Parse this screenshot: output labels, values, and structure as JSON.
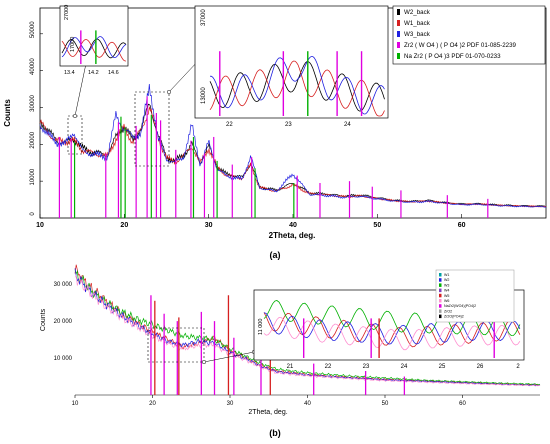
{
  "colors": {
    "black": "#000000",
    "red": "#d62020",
    "blue": "#2020e0",
    "magenta": "#e000e0",
    "green": "#00b000",
    "pink": "#ff8fd0",
    "grey": "#a0a0a0",
    "teal": "#00a0a0",
    "purple": "#8040c0"
  },
  "panel_labels": {
    "a": "(a)",
    "b": "(b)"
  },
  "chart_data": [
    {
      "type": "line",
      "panel": "(a)",
      "xlabel": "2Theta, deg.",
      "ylabel": "Counts",
      "xlim": [
        10,
        70
      ],
      "ylim": [
        0,
        57000
      ],
      "xticks": [
        "10",
        "20",
        "30",
        "40",
        "50",
        "60"
      ],
      "yticks": [
        "0",
        "10000",
        "20000",
        "30000",
        "40000",
        "50000"
      ],
      "legend_position": "top-right",
      "series": [
        {
          "name": "W2_back",
          "color": "#000000",
          "kind": "line",
          "x": [
            10,
            11,
            12,
            13,
            14,
            15,
            16,
            17,
            18,
            19,
            20,
            21,
            22,
            23,
            24,
            25,
            26,
            27,
            28,
            29,
            30,
            31,
            32,
            33,
            34,
            35,
            36,
            38,
            40,
            42,
            44,
            46,
            48,
            50,
            52,
            54,
            56,
            58,
            60,
            62,
            64,
            66,
            68,
            70
          ],
          "y": [
            26500,
            23500,
            21000,
            20500,
            21500,
            19000,
            18000,
            17500,
            17000,
            22000,
            25000,
            21000,
            24500,
            31000,
            22500,
            16500,
            15500,
            17000,
            20000,
            15000,
            19500,
            14000,
            12000,
            11500,
            11000,
            15000,
            8500,
            7500,
            9500,
            6800,
            6500,
            6000,
            6200,
            5500,
            4800,
            4500,
            4800,
            4200,
            3800,
            3900,
            3600,
            3400,
            3300,
            3200
          ]
        },
        {
          "name": "W1_back",
          "color": "#d62020",
          "kind": "line",
          "x": [
            10,
            11,
            12,
            13,
            14,
            15,
            16,
            17,
            18,
            19,
            20,
            21,
            22,
            23,
            24,
            25,
            26,
            27,
            28,
            29,
            30,
            31,
            32,
            33,
            34,
            35,
            36,
            38,
            40,
            42,
            44,
            46,
            48,
            50,
            52,
            54,
            56,
            58,
            60,
            62,
            64,
            66,
            68,
            70
          ],
          "y": [
            26000,
            23000,
            20800,
            20800,
            21000,
            18500,
            17800,
            17200,
            16800,
            21500,
            24500,
            20500,
            24000,
            30000,
            22000,
            16200,
            15200,
            16800,
            19500,
            14800,
            19000,
            13800,
            11800,
            11200,
            10800,
            14500,
            8300,
            7300,
            9000,
            6600,
            6300,
            5800,
            6000,
            5300,
            4700,
            4400,
            4600,
            4100,
            3700,
            3800,
            3500,
            3300,
            3200,
            3100
          ]
        },
        {
          "name": "W3_back",
          "color": "#2020e0",
          "kind": "line",
          "x": [
            10,
            11,
            12,
            13,
            14,
            15,
            16,
            17,
            18,
            19,
            20,
            21,
            22,
            23,
            24,
            25,
            26,
            27,
            28,
            29,
            30,
            31,
            32,
            33,
            34,
            35,
            36,
            38,
            40,
            42,
            44,
            46,
            48,
            50,
            52,
            54,
            56,
            58,
            60,
            62,
            64,
            66,
            68,
            70
          ],
          "y": [
            25500,
            22500,
            20500,
            20000,
            23500,
            18200,
            17500,
            17000,
            16500,
            28000,
            24000,
            22000,
            23000,
            36000,
            21500,
            16000,
            15000,
            16500,
            25000,
            14500,
            20500,
            13500,
            11500,
            11000,
            10500,
            17000,
            8200,
            7200,
            12000,
            6400,
            6100,
            5600,
            5900,
            5200,
            4600,
            4300,
            4500,
            4000,
            3600,
            3700,
            3400,
            3200,
            3100,
            3000
          ]
        },
        {
          "name": "Zr2 ( W O4 ) ( P O4 )2 PDF 01-085-2239",
          "color": "#e000e0",
          "kind": "sticks",
          "x": [
            12.3,
            13.7,
            17.8,
            19.3,
            21.4,
            22.7,
            23.8,
            24.3,
            26.1,
            27.9,
            29.5,
            30.6,
            32.8,
            35.1,
            40.5,
            43.2,
            46.7,
            49.4,
            52.8,
            58.3,
            63.1
          ],
          "y": [
            22000,
            21500,
            17500,
            26000,
            25000,
            33000,
            28500,
            26500,
            18500,
            21000,
            17500,
            22000,
            14500,
            16500,
            11500,
            9500,
            10000,
            8500,
            7500,
            6200,
            5200
          ]
        },
        {
          "name": "Na Zr2 ( P O4 )3 PDF 01-070-0233",
          "color": "#00b000",
          "kind": "sticks",
          "x": [
            14.1,
            19.6,
            20.1,
            23.2,
            28.2,
            31.0,
            35.5,
            40.1
          ],
          "y": [
            20500,
            27500,
            24500,
            28000,
            22000,
            15500,
            13500,
            9500
          ]
        }
      ],
      "insets": [
        {
          "xlim": [
            13.2,
            14.9
          ],
          "ylim": [
            15000,
            28000
          ],
          "xticks": [
            "13.4",
            "14.2",
            "14.6"
          ],
          "yticks": [
            "17000",
            "27000"
          ]
        },
        {
          "xlim": [
            21.2,
            24.8
          ],
          "ylim": [
            12000,
            38000
          ],
          "xticks": [
            "22",
            "23",
            "24"
          ],
          "yticks": [
            "13000",
            "37000"
          ]
        }
      ]
    },
    {
      "type": "line",
      "panel": "(b)",
      "xlabel": "2Theta, deg.",
      "ylabel": "Counts",
      "xlim": [
        10,
        70
      ],
      "ylim": [
        0,
        36000
      ],
      "xticks": [
        "10",
        "20",
        "30",
        "40",
        "50",
        "60"
      ],
      "yticks": [
        "10 000",
        "20 000",
        "30 000"
      ],
      "legend_position": "top-right",
      "legend_entries": [
        "W1",
        "W2",
        "W3",
        "W4",
        "W5",
        "W6",
        "NaZr2(WO4)(PO4)2",
        "ZrO2",
        "Zr2O(PO4)2"
      ],
      "series": [
        {
          "color": "#d62020",
          "kind": "line",
          "x": [
            10,
            12,
            14,
            16,
            18,
            20,
            22,
            24,
            26,
            28,
            30,
            32,
            34,
            36,
            40,
            45,
            50,
            55,
            60,
            65,
            70
          ],
          "y": [
            34000,
            29000,
            25500,
            22000,
            19500,
            17000,
            15000,
            13000,
            14000,
            15500,
            12000,
            10000,
            8000,
            6500,
            5500,
            4800,
            4200,
            3800,
            3400,
            3000,
            2700
          ]
        },
        {
          "color": "#00b000",
          "kind": "line",
          "x": [
            10,
            12,
            14,
            16,
            18,
            20,
            22,
            24,
            26,
            28,
            30,
            32,
            34,
            36,
            40,
            45,
            50,
            55,
            60,
            65,
            70
          ],
          "y": [
            33000,
            28500,
            25000,
            22500,
            20500,
            19000,
            17500,
            16000,
            15500,
            15000,
            12500,
            10500,
            8500,
            7000,
            6000,
            5200,
            4600,
            4000,
            3600,
            3200,
            2900
          ]
        },
        {
          "color": "#2020e0",
          "kind": "line",
          "x": [
            10,
            12,
            14,
            16,
            18,
            20,
            22,
            24,
            26,
            28,
            30,
            32,
            34,
            36,
            40,
            45,
            50,
            55,
            60,
            65,
            70
          ],
          "y": [
            32500,
            28000,
            24500,
            21500,
            19000,
            16500,
            14500,
            13500,
            14500,
            14000,
            11500,
            9800,
            7800,
            6300,
            5400,
            4700,
            4100,
            3700,
            3300,
            2900,
            2600
          ]
        },
        {
          "color": "#ff8fd0",
          "kind": "line",
          "x": [
            10,
            12,
            14,
            16,
            18,
            20,
            22,
            24,
            26,
            28,
            30,
            32,
            34,
            36,
            40,
            45,
            50,
            55,
            60,
            65,
            70
          ],
          "y": [
            32000,
            27500,
            24000,
            21000,
            18500,
            16000,
            14000,
            12500,
            13500,
            13500,
            11000,
            9500,
            7500,
            6000,
            5200,
            4500,
            3900,
            3500,
            3100,
            2800,
            2500
          ]
        },
        {
          "color": "#e000e0",
          "kind": "sticks",
          "x": [
            19.8,
            21.5,
            23.2,
            26.3,
            28.0,
            30.5,
            34.0,
            40.8,
            47.5,
            52.5
          ],
          "y": [
            27000,
            22000,
            20000,
            22500,
            20000,
            15500,
            10500,
            8500,
            6500,
            5000
          ]
        },
        {
          "color": "#d62020",
          "kind": "sticks",
          "x": [
            20.3,
            23.4,
            29.8,
            35.2
          ],
          "y": [
            25500,
            21000,
            27000,
            11500
          ]
        }
      ],
      "insets": [
        {
          "xlim": [
            20.5,
            27
          ],
          "ylim": [
            10000,
            16500
          ],
          "xticks": [
            "21",
            "22",
            "23",
            "24",
            "25",
            "26",
            "2"
          ],
          "yticks": [
            "11 000"
          ]
        }
      ]
    }
  ]
}
